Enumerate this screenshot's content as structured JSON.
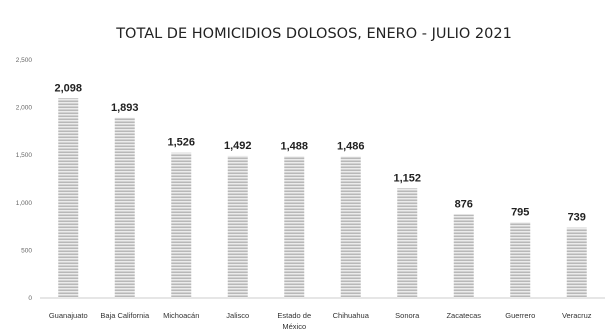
{
  "chart_data": {
    "type": "bar",
    "title": "TOTAL DE HOMICIDIOS DOLOSOS, ENERO - JULIO 2021",
    "categories": [
      "Guanajuato",
      "Baja California",
      "Michoacán",
      "Jalisco",
      "Estado de México",
      "Chihuahua",
      "Sonora",
      "Zacatecas",
      "Guerrero",
      "Veracruz"
    ],
    "values": [
      2098,
      1893,
      1526,
      1492,
      1488,
      1486,
      1152,
      876,
      795,
      739
    ],
    "value_labels": [
      "2,098",
      "1,893",
      "1,526",
      "1,492",
      "1,488",
      "1,486",
      "1,152",
      "876",
      "795",
      "739"
    ],
    "yticks": [
      "0",
      "500",
      "1,000",
      "1,500",
      "2,000",
      "2,500"
    ],
    "ylim": [
      0,
      2500
    ],
    "grid": false,
    "legend": "none",
    "bar_color": "#b8b8b8",
    "bar_pattern": "horizontal-stripes",
    "stripe_color": "#ebebeb"
  }
}
